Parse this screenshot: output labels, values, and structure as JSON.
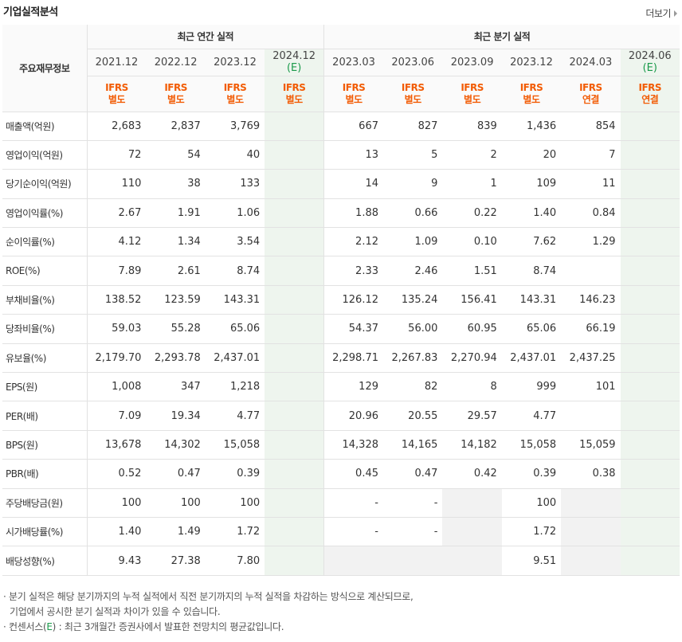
{
  "title": "기업실적분석",
  "more_label": "더보기",
  "header": {
    "row_label": "주요재무정보",
    "annual_group": "최근 연간 실적",
    "quarter_group": "최근 분기 실적",
    "annual_periods": [
      "2021.12",
      "2022.12",
      "2023.12",
      "2024.12"
    ],
    "annual_estimate_mark": "(E)",
    "quarter_periods": [
      "2023.03",
      "2023.06",
      "2023.09",
      "2023.12",
      "2024.03",
      "2024.06"
    ],
    "quarter_estimate_mark": "(E)",
    "annual_ifrs": [
      "IFRS",
      "IFRS",
      "IFRS",
      "IFRS"
    ],
    "annual_basis": [
      "별도",
      "별도",
      "별도",
      "별도"
    ],
    "quarter_ifrs": [
      "IFRS",
      "IFRS",
      "IFRS",
      "IFRS",
      "IFRS",
      "IFRS"
    ],
    "quarter_basis": [
      "별도",
      "별도",
      "별도",
      "별도",
      "연결",
      "연결"
    ]
  },
  "rows": [
    {
      "label": "매출액(억원)",
      "values": [
        "2,683",
        "2,837",
        "3,769",
        "",
        "667",
        "827",
        "839",
        "1,436",
        "854",
        ""
      ]
    },
    {
      "label": "영업이익(억원)",
      "values": [
        "72",
        "54",
        "40",
        "",
        "13",
        "5",
        "2",
        "20",
        "7",
        ""
      ]
    },
    {
      "label": "당기순이익(억원)",
      "values": [
        "110",
        "38",
        "133",
        "",
        "14",
        "9",
        "1",
        "109",
        "11",
        ""
      ]
    },
    {
      "label": "영업이익률(%)",
      "values": [
        "2.67",
        "1.91",
        "1.06",
        "",
        "1.88",
        "0.66",
        "0.22",
        "1.40",
        "0.84",
        ""
      ]
    },
    {
      "label": "순이익률(%)",
      "values": [
        "4.12",
        "1.34",
        "3.54",
        "",
        "2.12",
        "1.09",
        "0.10",
        "7.62",
        "1.29",
        ""
      ]
    },
    {
      "label": "ROE(%)",
      "values": [
        "7.89",
        "2.61",
        "8.74",
        "",
        "2.33",
        "2.46",
        "1.51",
        "8.74",
        "",
        ""
      ]
    },
    {
      "label": "부채비율(%)",
      "values": [
        "138.52",
        "123.59",
        "143.31",
        "",
        "126.12",
        "135.24",
        "156.41",
        "143.31",
        "146.23",
        ""
      ]
    },
    {
      "label": "당좌비율(%)",
      "values": [
        "59.03",
        "55.28",
        "65.06",
        "",
        "54.37",
        "56.00",
        "60.95",
        "65.06",
        "66.19",
        ""
      ]
    },
    {
      "label": "유보율(%)",
      "values": [
        "2,179.70",
        "2,293.78",
        "2,437.01",
        "",
        "2,298.71",
        "2,267.83",
        "2,270.94",
        "2,437.01",
        "2,437.25",
        ""
      ]
    },
    {
      "label": "EPS(원)",
      "values": [
        "1,008",
        "347",
        "1,218",
        "",
        "129",
        "82",
        "8",
        "999",
        "101",
        ""
      ]
    },
    {
      "label": "PER(배)",
      "values": [
        "7.09",
        "19.34",
        "4.77",
        "",
        "20.96",
        "20.55",
        "29.57",
        "4.77",
        "",
        ""
      ]
    },
    {
      "label": "BPS(원)",
      "values": [
        "13,678",
        "14,302",
        "15,058",
        "",
        "14,328",
        "14,165",
        "14,182",
        "15,058",
        "15,059",
        ""
      ]
    },
    {
      "label": "PBR(배)",
      "values": [
        "0.52",
        "0.47",
        "0.39",
        "",
        "0.45",
        "0.47",
        "0.42",
        "0.39",
        "0.38",
        ""
      ]
    },
    {
      "label": "주당배당금(원)",
      "values": [
        "100",
        "100",
        "100",
        "",
        "-",
        "-",
        "",
        "100",
        "",
        ""
      ]
    },
    {
      "label": "시가배당률(%)",
      "values": [
        "1.40",
        "1.49",
        "1.72",
        "",
        "-",
        "-",
        "",
        "1.72",
        "",
        ""
      ]
    },
    {
      "label": "배당성향(%)",
      "values": [
        "9.43",
        "27.38",
        "7.80",
        "",
        "",
        "",
        "",
        "9.51",
        "",
        ""
      ]
    }
  ],
  "group_starts": [
    3,
    6,
    9,
    13
  ],
  "gray_cells": [
    [
      13,
      6
    ],
    [
      13,
      8
    ],
    [
      14,
      6
    ],
    [
      14,
      8
    ],
    [
      15,
      4
    ],
    [
      15,
      5
    ],
    [
      15,
      6
    ],
    [
      15,
      8
    ]
  ],
  "notes": {
    "line1": "분기 실적은 해당 분기까지의 누적 실적에서 직전 분기까지의 누적 실적을 차감하는 방식으로 계산되므로,",
    "line2": "기업에서 공시한 분기 실적과 차이가 있을 수 있습니다.",
    "line3_prefix": "컨센서스(",
    "line3_e": "E",
    "line3_suffix": ") : 최근 3개월간 증권사에서 발표한 전망치의 평균값입니다."
  }
}
